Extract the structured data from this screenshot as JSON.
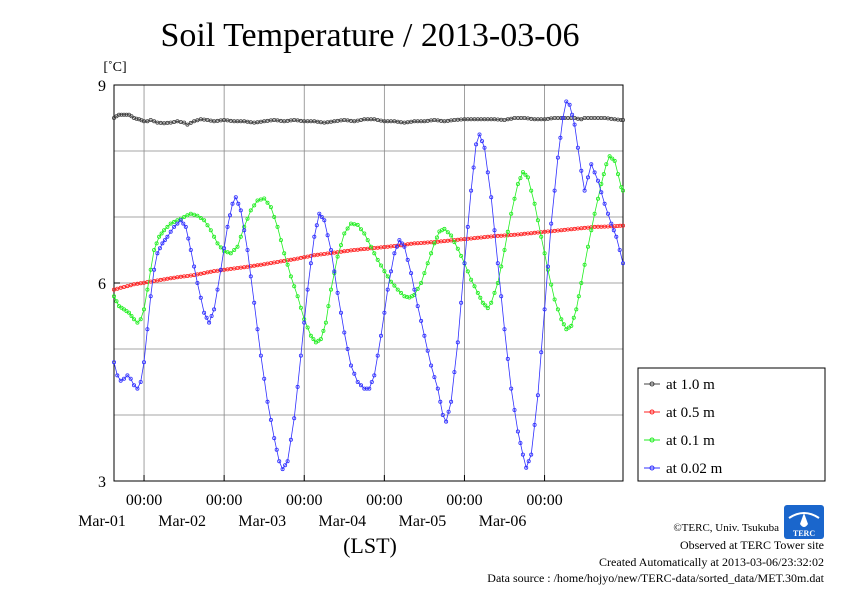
{
  "chart_data": {
    "type": "line",
    "title": "Soil Temperature / 2013-03-06",
    "ylabel": "[˚C]",
    "xlabel": "(LST)",
    "ylim": [
      3,
      9
    ],
    "y_ticks": [
      "9",
      "6",
      "3"
    ],
    "x_ticks": [
      {
        "time": "00:00",
        "date": "Mar-01"
      },
      {
        "time": "00:00",
        "date": "Mar-02"
      },
      {
        "time": "00:00",
        "date": "Mar-03"
      },
      {
        "time": "00:00",
        "date": "Mar-04"
      },
      {
        "time": "00:00",
        "date": "Mar-05"
      },
      {
        "time": "00:00",
        "date": "Mar-06"
      }
    ],
    "xlim": [
      "2013-02-28 15:00",
      "2013-03-06 23:30"
    ],
    "grid": true,
    "legend_position": "right",
    "series": [
      {
        "name": "at 1.0 m",
        "color": "#404040",
        "points": [
          [
            0,
            8.5
          ],
          [
            1.5,
            8.55
          ],
          [
            3,
            8.55
          ],
          [
            4.5,
            8.55
          ],
          [
            6,
            8.5
          ],
          [
            7.5,
            8.48
          ],
          [
            9,
            8.45
          ],
          [
            10,
            8.45
          ],
          [
            11,
            8.47
          ],
          [
            12,
            8.45
          ],
          [
            13,
            8.43
          ],
          [
            15,
            8.42
          ],
          [
            17,
            8.43
          ],
          [
            19,
            8.45
          ],
          [
            21,
            8.43
          ],
          [
            22,
            8.4
          ],
          [
            24,
            8.45
          ],
          [
            26,
            8.48
          ],
          [
            28,
            8.47
          ],
          [
            30,
            8.45
          ],
          [
            33,
            8.47
          ],
          [
            36,
            8.45
          ],
          [
            39,
            8.45
          ],
          [
            42,
            8.43
          ],
          [
            45,
            8.45
          ],
          [
            48,
            8.47
          ],
          [
            51,
            8.45
          ],
          [
            54,
            8.47
          ],
          [
            57,
            8.45
          ],
          [
            60,
            8.45
          ],
          [
            63,
            8.43
          ],
          [
            66,
            8.45
          ],
          [
            69,
            8.47
          ],
          [
            72,
            8.45
          ],
          [
            75,
            8.48
          ],
          [
            78,
            8.48
          ],
          [
            81,
            8.45
          ],
          [
            84,
            8.45
          ],
          [
            87,
            8.43
          ],
          [
            90,
            8.45
          ],
          [
            93,
            8.45
          ],
          [
            96,
            8.47
          ],
          [
            99,
            8.45
          ],
          [
            102,
            8.47
          ],
          [
            105,
            8.48
          ],
          [
            108,
            8.48
          ],
          [
            111,
            8.48
          ],
          [
            114,
            8.48
          ],
          [
            117,
            8.47
          ],
          [
            120,
            8.5
          ],
          [
            123,
            8.5
          ],
          [
            126,
            8.48
          ],
          [
            129,
            8.48
          ],
          [
            132,
            8.5
          ],
          [
            135,
            8.5
          ],
          [
            138,
            8.5
          ],
          [
            140,
            8.48
          ],
          [
            141,
            8.5
          ],
          [
            144,
            8.5
          ],
          [
            147,
            8.5
          ],
          [
            150,
            8.48
          ],
          [
            152,
            8.47
          ],
          [
            152.5,
            8.47
          ]
        ]
      },
      {
        "name": "at 0.5 m",
        "color": "#ff2020",
        "points": [
          [
            0,
            5.9
          ],
          [
            6,
            5.98
          ],
          [
            12,
            6.03
          ],
          [
            18,
            6.08
          ],
          [
            24,
            6.12
          ],
          [
            30,
            6.18
          ],
          [
            36,
            6.22
          ],
          [
            42,
            6.26
          ],
          [
            48,
            6.31
          ],
          [
            54,
            6.36
          ],
          [
            60,
            6.42
          ],
          [
            66,
            6.46
          ],
          [
            72,
            6.5
          ],
          [
            78,
            6.53
          ],
          [
            84,
            6.56
          ],
          [
            90,
            6.6
          ],
          [
            96,
            6.62
          ],
          [
            102,
            6.65
          ],
          [
            108,
            6.68
          ],
          [
            114,
            6.71
          ],
          [
            120,
            6.73
          ],
          [
            126,
            6.76
          ],
          [
            132,
            6.79
          ],
          [
            138,
            6.82
          ],
          [
            144,
            6.85
          ],
          [
            150,
            6.86
          ],
          [
            152.5,
            6.87
          ]
        ]
      },
      {
        "name": "at 0.1 m",
        "color": "#20ee20",
        "points": [
          [
            0,
            5.8
          ],
          [
            1.5,
            5.65
          ],
          [
            3,
            5.6
          ],
          [
            4.5,
            5.55
          ],
          [
            6,
            5.45
          ],
          [
            7,
            5.4
          ],
          [
            8,
            5.45
          ],
          [
            9,
            5.6
          ],
          [
            10,
            5.9
          ],
          [
            11,
            6.2
          ],
          [
            12,
            6.5
          ],
          [
            13.5,
            6.7
          ],
          [
            15,
            6.8
          ],
          [
            17,
            6.9
          ],
          [
            19,
            6.95
          ],
          [
            21,
            7.0
          ],
          [
            23,
            7.05
          ],
          [
            25,
            7.02
          ],
          [
            27,
            6.95
          ],
          [
            29,
            6.8
          ],
          [
            31,
            6.6
          ],
          [
            33,
            6.48
          ],
          [
            35,
            6.45
          ],
          [
            37,
            6.55
          ],
          [
            39,
            6.85
          ],
          [
            41,
            7.1
          ],
          [
            43,
            7.25
          ],
          [
            45,
            7.28
          ],
          [
            47,
            7.15
          ],
          [
            49,
            6.85
          ],
          [
            51,
            6.45
          ],
          [
            53,
            6.1
          ],
          [
            55,
            5.8
          ],
          [
            57,
            5.45
          ],
          [
            59,
            5.2
          ],
          [
            60.5,
            5.1
          ],
          [
            62,
            5.15
          ],
          [
            63.5,
            5.4
          ],
          [
            65,
            5.9
          ],
          [
            67,
            6.4
          ],
          [
            69,
            6.75
          ],
          [
            71,
            6.9
          ],
          [
            73,
            6.88
          ],
          [
            75,
            6.75
          ],
          [
            77,
            6.55
          ],
          [
            79,
            6.35
          ],
          [
            81,
            6.18
          ],
          [
            83,
            6.02
          ],
          [
            85,
            5.9
          ],
          [
            87,
            5.8
          ],
          [
            88.5,
            5.78
          ],
          [
            90,
            5.82
          ],
          [
            92,
            6.0
          ],
          [
            94,
            6.3
          ],
          [
            96,
            6.6
          ],
          [
            97.5,
            6.78
          ],
          [
            99,
            6.82
          ],
          [
            101,
            6.72
          ],
          [
            103,
            6.52
          ],
          [
            105,
            6.3
          ],
          [
            107,
            6.05
          ],
          [
            109,
            5.85
          ],
          [
            110.5,
            5.7
          ],
          [
            112,
            5.62
          ],
          [
            113,
            5.7
          ],
          [
            115,
            6.0
          ],
          [
            117,
            6.5
          ],
          [
            119,
            7.05
          ],
          [
            121,
            7.5
          ],
          [
            122.5,
            7.68
          ],
          [
            124,
            7.6
          ],
          [
            126,
            7.2
          ],
          [
            128,
            6.7
          ],
          [
            130,
            6.2
          ],
          [
            132,
            5.75
          ],
          [
            134,
            5.45
          ],
          [
            135.5,
            5.3
          ],
          [
            137,
            5.35
          ],
          [
            138.5,
            5.6
          ],
          [
            140,
            6.0
          ],
          [
            142,
            6.55
          ],
          [
            144,
            7.05
          ],
          [
            146,
            7.5
          ],
          [
            147.5,
            7.8
          ],
          [
            148.5,
            7.92
          ],
          [
            150,
            7.85
          ],
          [
            151,
            7.65
          ],
          [
            152,
            7.45
          ],
          [
            152.5,
            7.4
          ]
        ]
      },
      {
        "name": "at 0.02 m",
        "color": "#3030ff",
        "points": [
          [
            0,
            4.8
          ],
          [
            1,
            4.6
          ],
          [
            2,
            4.52
          ],
          [
            3,
            4.55
          ],
          [
            4,
            4.6
          ],
          [
            5,
            4.55
          ],
          [
            6,
            4.45
          ],
          [
            7,
            4.4
          ],
          [
            8,
            4.5
          ],
          [
            9,
            4.8
          ],
          [
            10,
            5.3
          ],
          [
            11,
            5.8
          ],
          [
            12,
            6.2
          ],
          [
            13,
            6.45
          ],
          [
            14.5,
            6.6
          ],
          [
            16,
            6.7
          ],
          [
            18,
            6.85
          ],
          [
            20,
            6.95
          ],
          [
            21.5,
            6.85
          ],
          [
            23,
            6.5
          ],
          [
            25,
            6.0
          ],
          [
            27,
            5.55
          ],
          [
            28.5,
            5.4
          ],
          [
            30,
            5.6
          ],
          [
            32,
            6.2
          ],
          [
            34,
            6.85
          ],
          [
            35.5,
            7.2
          ],
          [
            36.5,
            7.3
          ],
          [
            38,
            7.1
          ],
          [
            40,
            6.5
          ],
          [
            42,
            5.7
          ],
          [
            44,
            4.9
          ],
          [
            46,
            4.2
          ],
          [
            48,
            3.65
          ],
          [
            49.5,
            3.3
          ],
          [
            50.5,
            3.18
          ],
          [
            52,
            3.3
          ],
          [
            54,
            3.95
          ],
          [
            56,
            4.9
          ],
          [
            58,
            5.9
          ],
          [
            60,
            6.7
          ],
          [
            61.5,
            7.05
          ],
          [
            63,
            6.95
          ],
          [
            65,
            6.5
          ],
          [
            67,
            5.85
          ],
          [
            69,
            5.25
          ],
          [
            71,
            4.75
          ],
          [
            73,
            4.5
          ],
          [
            75,
            4.4
          ],
          [
            76.5,
            4.4
          ],
          [
            78,
            4.6
          ],
          [
            80,
            5.2
          ],
          [
            82,
            5.9
          ],
          [
            84,
            6.45
          ],
          [
            85.5,
            6.65
          ],
          [
            87,
            6.55
          ],
          [
            89,
            6.15
          ],
          [
            91,
            5.65
          ],
          [
            93,
            5.2
          ],
          [
            95,
            4.75
          ],
          [
            97,
            4.4
          ],
          [
            98.5,
            4.0
          ],
          [
            99.5,
            3.9
          ],
          [
            101,
            4.2
          ],
          [
            103,
            5.1
          ],
          [
            105,
            6.3
          ],
          [
            107,
            7.4
          ],
          [
            108.5,
            8.1
          ],
          [
            109.5,
            8.25
          ],
          [
            111,
            8.05
          ],
          [
            113,
            7.3
          ],
          [
            115,
            6.3
          ],
          [
            117,
            5.3
          ],
          [
            119,
            4.4
          ],
          [
            121,
            3.75
          ],
          [
            122.5,
            3.4
          ],
          [
            123.5,
            3.2
          ],
          [
            125,
            3.4
          ],
          [
            127,
            4.3
          ],
          [
            129,
            5.6
          ],
          [
            131,
            6.9
          ],
          [
            133,
            7.9
          ],
          [
            134.5,
            8.5
          ],
          [
            135.5,
            8.75
          ],
          [
            136.5,
            8.7
          ],
          [
            138,
            8.4
          ],
          [
            140,
            7.7
          ],
          [
            141,
            7.4
          ],
          [
            142,
            7.6
          ],
          [
            143,
            7.8
          ],
          [
            145,
            7.55
          ],
          [
            147,
            7.2
          ],
          [
            149,
            6.9
          ],
          [
            150.5,
            6.7
          ],
          [
            151.5,
            6.5
          ],
          [
            152.5,
            6.3
          ]
        ]
      }
    ]
  },
  "credits": {
    "copyright": "©TERC, Univ. Tsukuba",
    "observed": "Observed at TERC Tower site",
    "created": "Created Automatically at 2013-03-06/23:32:02",
    "source": "Data source : /home/hojyo/new/TERC-data/sorted_data/MET.30m.dat",
    "logo_text": "TERC",
    "logo_color": "#1a66cc"
  }
}
